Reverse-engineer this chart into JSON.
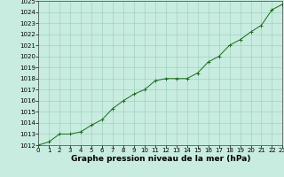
{
  "x": [
    0,
    1,
    2,
    3,
    4,
    5,
    6,
    7,
    8,
    9,
    10,
    11,
    12,
    13,
    14,
    15,
    16,
    17,
    18,
    19,
    20,
    21,
    22,
    23
  ],
  "y": [
    1012.0,
    1012.3,
    1013.0,
    1013.0,
    1013.2,
    1013.8,
    1014.3,
    1015.3,
    1016.0,
    1016.6,
    1017.0,
    1017.8,
    1018.0,
    1018.0,
    1018.0,
    1018.5,
    1019.5,
    1020.0,
    1021.0,
    1021.5,
    1022.2,
    1022.8,
    1024.2,
    1024.7
  ],
  "xlabel": "Graphe pression niveau de la mer (hPa)",
  "ylim": [
    1012,
    1025
  ],
  "xlim": [
    0,
    23
  ],
  "yticks": [
    1012,
    1013,
    1014,
    1015,
    1016,
    1017,
    1018,
    1019,
    1020,
    1021,
    1022,
    1023,
    1024,
    1025
  ],
  "xticks": [
    0,
    1,
    2,
    3,
    4,
    5,
    6,
    7,
    8,
    9,
    10,
    11,
    12,
    13,
    14,
    15,
    16,
    17,
    18,
    19,
    20,
    21,
    22,
    23
  ],
  "line_color": "#1a6b1a",
  "marker_color": "#1a6b1a",
  "bg_color": "#c8ece0",
  "grid_color": "#99ccbb",
  "xlabel_fontsize": 6.5,
  "tick_fontsize": 5.0
}
